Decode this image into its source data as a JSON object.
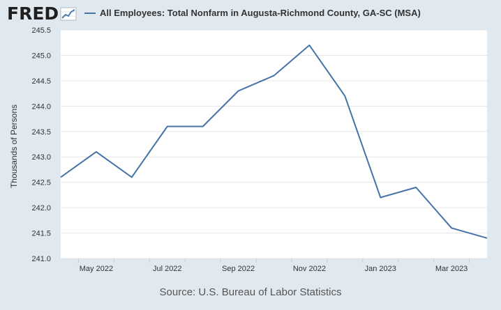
{
  "header": {
    "logo_text": "FRED",
    "logo_icon": "chart-line-icon",
    "legend_label": "All Employees: Total Nonfarm in Augusta-Richmond County, GA-SC (MSA)"
  },
  "source": "Source: U.S. Bureau of Labor Statistics",
  "colors": {
    "series": "#4572a7",
    "background": "#e1e9f0",
    "plot": "#ffffff",
    "grid": "#e6e6e6"
  },
  "chart_data": {
    "type": "line",
    "title": "",
    "ylabel": "Thousands of Persons",
    "xlabel": "",
    "ylim": [
      241.0,
      245.5
    ],
    "yticks": [
      "241.0",
      "241.5",
      "242.0",
      "242.5",
      "243.0",
      "243.5",
      "244.0",
      "244.5",
      "245.0",
      "245.5"
    ],
    "xtick_labels": [
      "May 2022",
      "Jul 2022",
      "Sep 2022",
      "Nov 2022",
      "Jan 2023",
      "Mar 2023"
    ],
    "grid": true,
    "legend": "top",
    "x": [
      "2022-04",
      "2022-05",
      "2022-06",
      "2022-07",
      "2022-08",
      "2022-09",
      "2022-10",
      "2022-11",
      "2022-12",
      "2023-01",
      "2023-02",
      "2023-03",
      "2023-04"
    ],
    "series": [
      {
        "name": "All Employees: Total Nonfarm in Augusta-Richmond County, GA-SC (MSA)",
        "values": [
          242.6,
          243.1,
          242.6,
          243.6,
          243.6,
          244.3,
          244.6,
          245.2,
          244.2,
          242.2,
          242.4,
          241.6,
          241.4
        ]
      }
    ]
  }
}
